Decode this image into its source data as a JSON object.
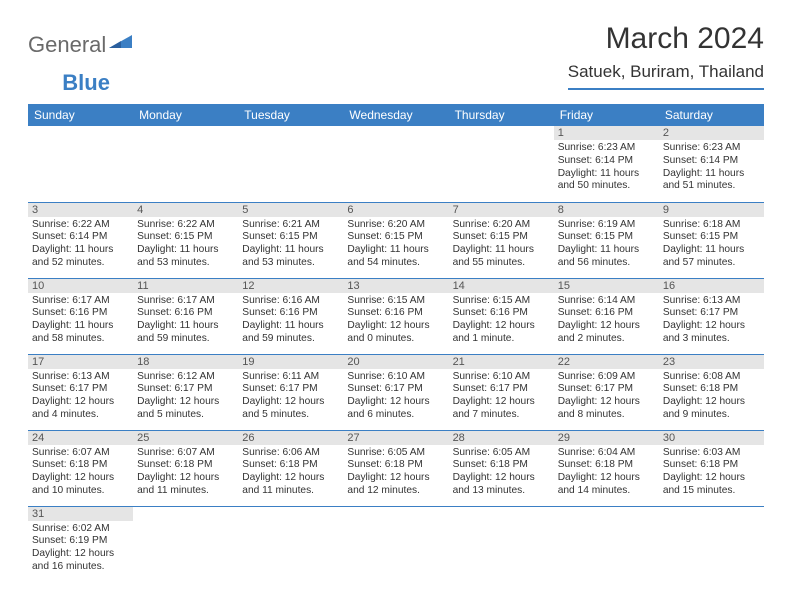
{
  "header": {
    "logo_text1": "General",
    "logo_text2": "Blue",
    "month_title": "March 2024",
    "location": "Satuek, Buriram, Thailand"
  },
  "style": {
    "header_bg": "#3b7fc4",
    "header_text": "#ffffff",
    "daynum_bg": "#e5e5e5",
    "border_color": "#3b7fc4",
    "logo_gray": "#6a6a6a",
    "logo_blue": "#3b7fc4",
    "body_font_size_pt": 10,
    "title_font_size_pt": 30
  },
  "weekdays": [
    "Sunday",
    "Monday",
    "Tuesday",
    "Wednesday",
    "Thursday",
    "Friday",
    "Saturday"
  ],
  "weeks": [
    [
      null,
      null,
      null,
      null,
      null,
      {
        "n": "1",
        "sr": "Sunrise: 6:23 AM",
        "ss": "Sunset: 6:14 PM",
        "dl": "Daylight: 11 hours and 50 minutes."
      },
      {
        "n": "2",
        "sr": "Sunrise: 6:23 AM",
        "ss": "Sunset: 6:14 PM",
        "dl": "Daylight: 11 hours and 51 minutes."
      }
    ],
    [
      {
        "n": "3",
        "sr": "Sunrise: 6:22 AM",
        "ss": "Sunset: 6:14 PM",
        "dl": "Daylight: 11 hours and 52 minutes."
      },
      {
        "n": "4",
        "sr": "Sunrise: 6:22 AM",
        "ss": "Sunset: 6:15 PM",
        "dl": "Daylight: 11 hours and 53 minutes."
      },
      {
        "n": "5",
        "sr": "Sunrise: 6:21 AM",
        "ss": "Sunset: 6:15 PM",
        "dl": "Daylight: 11 hours and 53 minutes."
      },
      {
        "n": "6",
        "sr": "Sunrise: 6:20 AM",
        "ss": "Sunset: 6:15 PM",
        "dl": "Daylight: 11 hours and 54 minutes."
      },
      {
        "n": "7",
        "sr": "Sunrise: 6:20 AM",
        "ss": "Sunset: 6:15 PM",
        "dl": "Daylight: 11 hours and 55 minutes."
      },
      {
        "n": "8",
        "sr": "Sunrise: 6:19 AM",
        "ss": "Sunset: 6:15 PM",
        "dl": "Daylight: 11 hours and 56 minutes."
      },
      {
        "n": "9",
        "sr": "Sunrise: 6:18 AM",
        "ss": "Sunset: 6:15 PM",
        "dl": "Daylight: 11 hours and 57 minutes."
      }
    ],
    [
      {
        "n": "10",
        "sr": "Sunrise: 6:17 AM",
        "ss": "Sunset: 6:16 PM",
        "dl": "Daylight: 11 hours and 58 minutes."
      },
      {
        "n": "11",
        "sr": "Sunrise: 6:17 AM",
        "ss": "Sunset: 6:16 PM",
        "dl": "Daylight: 11 hours and 59 minutes."
      },
      {
        "n": "12",
        "sr": "Sunrise: 6:16 AM",
        "ss": "Sunset: 6:16 PM",
        "dl": "Daylight: 11 hours and 59 minutes."
      },
      {
        "n": "13",
        "sr": "Sunrise: 6:15 AM",
        "ss": "Sunset: 6:16 PM",
        "dl": "Daylight: 12 hours and 0 minutes."
      },
      {
        "n": "14",
        "sr": "Sunrise: 6:15 AM",
        "ss": "Sunset: 6:16 PM",
        "dl": "Daylight: 12 hours and 1 minute."
      },
      {
        "n": "15",
        "sr": "Sunrise: 6:14 AM",
        "ss": "Sunset: 6:16 PM",
        "dl": "Daylight: 12 hours and 2 minutes."
      },
      {
        "n": "16",
        "sr": "Sunrise: 6:13 AM",
        "ss": "Sunset: 6:17 PM",
        "dl": "Daylight: 12 hours and 3 minutes."
      }
    ],
    [
      {
        "n": "17",
        "sr": "Sunrise: 6:13 AM",
        "ss": "Sunset: 6:17 PM",
        "dl": "Daylight: 12 hours and 4 minutes."
      },
      {
        "n": "18",
        "sr": "Sunrise: 6:12 AM",
        "ss": "Sunset: 6:17 PM",
        "dl": "Daylight: 12 hours and 5 minutes."
      },
      {
        "n": "19",
        "sr": "Sunrise: 6:11 AM",
        "ss": "Sunset: 6:17 PM",
        "dl": "Daylight: 12 hours and 5 minutes."
      },
      {
        "n": "20",
        "sr": "Sunrise: 6:10 AM",
        "ss": "Sunset: 6:17 PM",
        "dl": "Daylight: 12 hours and 6 minutes."
      },
      {
        "n": "21",
        "sr": "Sunrise: 6:10 AM",
        "ss": "Sunset: 6:17 PM",
        "dl": "Daylight: 12 hours and 7 minutes."
      },
      {
        "n": "22",
        "sr": "Sunrise: 6:09 AM",
        "ss": "Sunset: 6:17 PM",
        "dl": "Daylight: 12 hours and 8 minutes."
      },
      {
        "n": "23",
        "sr": "Sunrise: 6:08 AM",
        "ss": "Sunset: 6:18 PM",
        "dl": "Daylight: 12 hours and 9 minutes."
      }
    ],
    [
      {
        "n": "24",
        "sr": "Sunrise: 6:07 AM",
        "ss": "Sunset: 6:18 PM",
        "dl": "Daylight: 12 hours and 10 minutes."
      },
      {
        "n": "25",
        "sr": "Sunrise: 6:07 AM",
        "ss": "Sunset: 6:18 PM",
        "dl": "Daylight: 12 hours and 11 minutes."
      },
      {
        "n": "26",
        "sr": "Sunrise: 6:06 AM",
        "ss": "Sunset: 6:18 PM",
        "dl": "Daylight: 12 hours and 11 minutes."
      },
      {
        "n": "27",
        "sr": "Sunrise: 6:05 AM",
        "ss": "Sunset: 6:18 PM",
        "dl": "Daylight: 12 hours and 12 minutes."
      },
      {
        "n": "28",
        "sr": "Sunrise: 6:05 AM",
        "ss": "Sunset: 6:18 PM",
        "dl": "Daylight: 12 hours and 13 minutes."
      },
      {
        "n": "29",
        "sr": "Sunrise: 6:04 AM",
        "ss": "Sunset: 6:18 PM",
        "dl": "Daylight: 12 hours and 14 minutes."
      },
      {
        "n": "30",
        "sr": "Sunrise: 6:03 AM",
        "ss": "Sunset: 6:18 PM",
        "dl": "Daylight: 12 hours and 15 minutes."
      }
    ],
    [
      {
        "n": "31",
        "sr": "Sunrise: 6:02 AM",
        "ss": "Sunset: 6:19 PM",
        "dl": "Daylight: 12 hours and 16 minutes."
      },
      null,
      null,
      null,
      null,
      null,
      null
    ]
  ]
}
